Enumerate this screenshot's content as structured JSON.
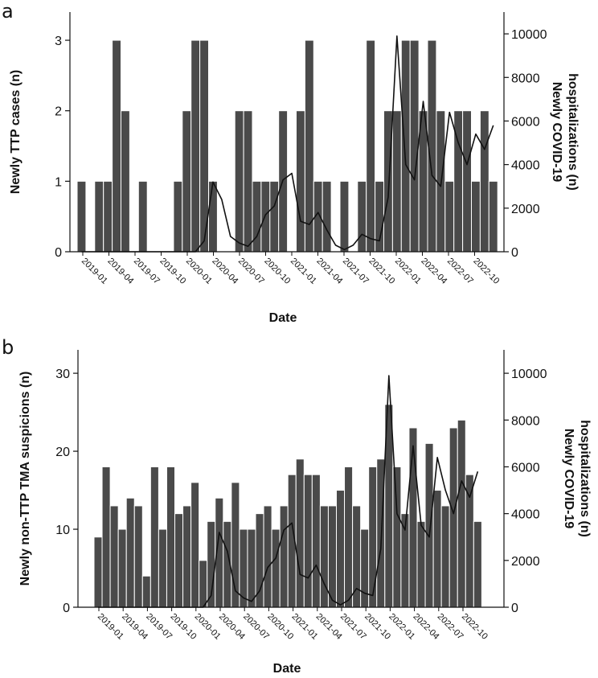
{
  "colors": {
    "bar": "#4a4a4a",
    "line": "#111111",
    "axis": "#111111"
  },
  "chart_data": [
    {
      "panel": "a",
      "type": "bar",
      "xlabel": "Date",
      "ylabel": "Newly TTP cases (n)",
      "y2label_line1": "Newly COVID-19",
      "y2label_line2": "hospitalizations (n)",
      "ylim": [
        0,
        3.4
      ],
      "yticks": [
        0,
        1,
        2,
        3
      ],
      "y2lim": [
        0,
        11000
      ],
      "y2ticks": [
        0,
        2000,
        4000,
        6000,
        8000,
        10000
      ],
      "xtick_labels": [
        "2019-01",
        "2019-04",
        "2019-07",
        "2019-10",
        "2020-01",
        "2020-04",
        "2020-07",
        "2020-10",
        "2021-01",
        "2021-04",
        "2021-07",
        "2021-10",
        "2022-01",
        "2022-04",
        "2022-07",
        "2022-10"
      ],
      "series": [
        {
          "name": "Newly TTP cases",
          "kind": "bar",
          "values": [
            1,
            0,
            1,
            1,
            3,
            2,
            0,
            1,
            0,
            0,
            0,
            1,
            2,
            3,
            3,
            1,
            0,
            0,
            2,
            2,
            1,
            1,
            1,
            2,
            0,
            2,
            3,
            1,
            1,
            0,
            1,
            0,
            1,
            3,
            1,
            2,
            2,
            3,
            3,
            2,
            3,
            2,
            1,
            2,
            2,
            1,
            2,
            1
          ]
        },
        {
          "name": "Newly COVID-19 hospitalizations",
          "kind": "line",
          "values": [
            0,
            0,
            0,
            0,
            0,
            0,
            0,
            0,
            0,
            0,
            0,
            0,
            0,
            0,
            500,
            3200,
            2400,
            700,
            400,
            250,
            700,
            1700,
            2100,
            3300,
            3600,
            1400,
            1250,
            1800,
            1000,
            300,
            100,
            300,
            800,
            600,
            500,
            2500,
            9900,
            4000,
            3300,
            6900,
            3500,
            3000,
            6400,
            5000,
            4000,
            5400,
            4700,
            5800
          ]
        }
      ]
    },
    {
      "panel": "b",
      "type": "bar",
      "xlabel": "Date",
      "ylabel": "Newly non-TTP TMA suspicions (n)",
      "y2label_line1": "Newly COVID-19",
      "y2label_line2": "hospitalizations (n)",
      "ylim": [
        0,
        33
      ],
      "yticks": [
        0,
        10,
        20,
        30
      ],
      "y2lim": [
        0,
        11000
      ],
      "y2ticks": [
        0,
        2000,
        4000,
        6000,
        8000,
        10000
      ],
      "xtick_labels": [
        "2019-01",
        "2019-04",
        "2019-07",
        "2019-10",
        "2020-01",
        "2020-04",
        "2020-07",
        "2020-10",
        "2021-01",
        "2021-04",
        "2021-07",
        "2021-10",
        "2022-01",
        "2022-04",
        "2022-07",
        "2022-10"
      ],
      "series": [
        {
          "name": "Newly non-TTP TMA suspicions",
          "kind": "bar",
          "values": [
            9,
            18,
            13,
            10,
            14,
            13,
            4,
            18,
            10,
            18,
            12,
            13,
            16,
            6,
            11,
            14,
            11,
            16,
            10,
            10,
            12,
            13,
            10,
            13,
            17,
            19,
            17,
            17,
            13,
            13,
            15,
            18,
            13,
            10,
            18,
            19,
            26,
            18,
            12,
            23,
            11,
            21,
            15,
            13,
            23,
            24,
            17,
            11
          ]
        },
        {
          "name": "Newly COVID-19 hospitalizations",
          "kind": "line",
          "values": [
            0,
            0,
            0,
            0,
            0,
            0,
            0,
            0,
            0,
            0,
            0,
            0,
            0,
            0,
            500,
            3200,
            2400,
            700,
            400,
            250,
            700,
            1700,
            2100,
            3300,
            3600,
            1400,
            1250,
            1800,
            1000,
            300,
            100,
            300,
            800,
            600,
            500,
            2500,
            9900,
            4000,
            3300,
            6900,
            3500,
            3000,
            6400,
            5000,
            4000,
            5400,
            4700,
            5800
          ]
        }
      ]
    }
  ]
}
